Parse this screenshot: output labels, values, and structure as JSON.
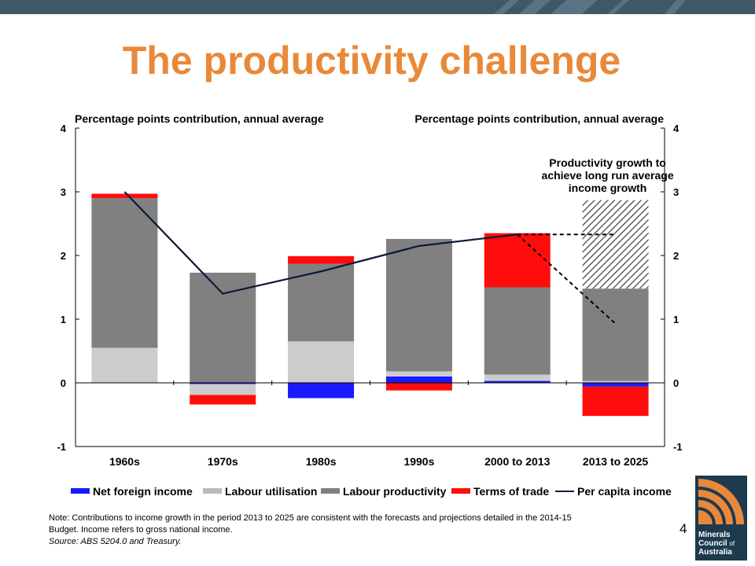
{
  "slide": {
    "title": "The productivity challenge",
    "page_number": "4",
    "note_line1": "Note: Contributions to income growth in the period 2013 to 2025 are consistent with the forecasts and projections detailed in the 2014-15",
    "note_line2": "Budget. Income refers to gross national income.",
    "source": "Source: ABS 5204.0 and Treasury.",
    "logo": {
      "line1": "Minerals",
      "line2": "Council",
      "of": "of",
      "line3": "Australia"
    }
  },
  "colors": {
    "title": "#e8893a",
    "topbar": "#3f5868",
    "net_foreign_income": "#1a1aff",
    "labour_utilisation": "#cccccc",
    "labour_productivity": "#808080",
    "terms_of_trade": "#ff0d0d",
    "per_capita_income": "#0b1a3b"
  },
  "chart_data": {
    "type": "bar",
    "stacked": true,
    "ylim": [
      -1,
      4
    ],
    "yticks": [
      -1,
      0,
      1,
      2,
      3,
      4
    ],
    "ylabel_left": "Percentage points contribution, annual average",
    "ylabel_right": "Percentage points contribution, annual average",
    "categories": [
      "1960s",
      "1970s",
      "1980s",
      "1990s",
      "2000 to 2013",
      "2013 to 2025"
    ],
    "series": [
      {
        "name": "Net foreign income",
        "values": [
          0,
          -0.02,
          -0.24,
          0.1,
          0.03,
          -0.06
        ]
      },
      {
        "name": "Labour utilisation",
        "values": [
          0.55,
          -0.17,
          0.65,
          0.08,
          0.1,
          0.03
        ]
      },
      {
        "name": "Labour productivity",
        "values": [
          2.35,
          1.73,
          1.22,
          2.08,
          1.37,
          1.45
        ]
      },
      {
        "name": "Terms of trade",
        "values": [
          0.07,
          -0.15,
          0.12,
          -0.12,
          0.85,
          -0.46
        ]
      }
    ],
    "hatched": {
      "category": "2013 to 2025",
      "from": 1.48,
      "to": 2.87
    },
    "line": {
      "name": "Per capita income",
      "values": [
        3.0,
        1.4,
        1.75,
        2.15,
        2.33,
        null
      ]
    },
    "dashed_lines": [
      {
        "points": [
          [
            "2000 to 2013",
            2.33
          ],
          [
            "2013 to 2025",
            2.33
          ]
        ]
      },
      {
        "points": [
          [
            "2000 to 2013",
            2.33
          ],
          [
            "2013 to 2025",
            0.93
          ]
        ]
      }
    ],
    "annotation": {
      "lines": [
        "Productivity growth to",
        "achieve long run average",
        "income growth"
      ]
    },
    "legend": [
      {
        "label": "Net foreign income",
        "swatch": "bar",
        "color": "#1a1aff"
      },
      {
        "label": "Labour utilisation",
        "swatch": "bar",
        "color": "#bbbbbb"
      },
      {
        "label": "Labour productivity",
        "swatch": "bar",
        "color": "#808080"
      },
      {
        "label": "Terms of trade",
        "swatch": "bar",
        "color": "#ff0d0d"
      },
      {
        "label": "Per capita income",
        "swatch": "line",
        "color": "#0b1a3b"
      }
    ],
    "legend_position": "bottom"
  }
}
